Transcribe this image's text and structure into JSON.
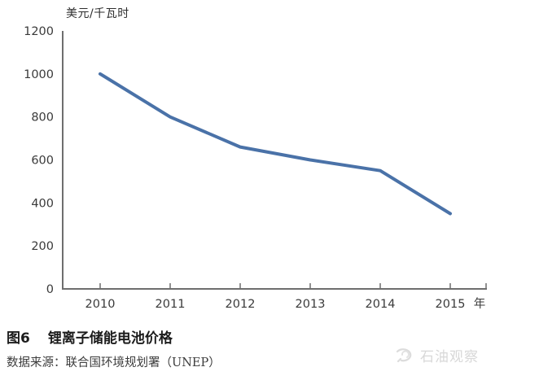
{
  "chart_data": {
    "type": "line",
    "title": "锂离子储能电池价格",
    "x": [
      2010,
      2011,
      2012,
      2013,
      2014,
      2015
    ],
    "values": [
      1000,
      800,
      660,
      600,
      550,
      350
    ],
    "series_name": "锂离子储能电池价格",
    "xlabel": "年",
    "ylabel": "美元/千瓦时",
    "ylim": [
      0,
      1200
    ],
    "y_ticks": [
      0,
      200,
      400,
      600,
      800,
      1000,
      1200
    ],
    "grid": false,
    "legend": "none",
    "line_color": "#4a72a8",
    "axis_color": "#6e6e6e",
    "tick_label_color": "#3a3a3a"
  },
  "caption": {
    "figure_label": "图6",
    "title": "锂离子储能电池价格"
  },
  "source": {
    "text": "数据来源：联合国环境规划署（UNEP）"
  },
  "watermark": {
    "text": "石油观察",
    "icon": "magnifier-swirl-icon",
    "color": "#d8d8d8"
  }
}
